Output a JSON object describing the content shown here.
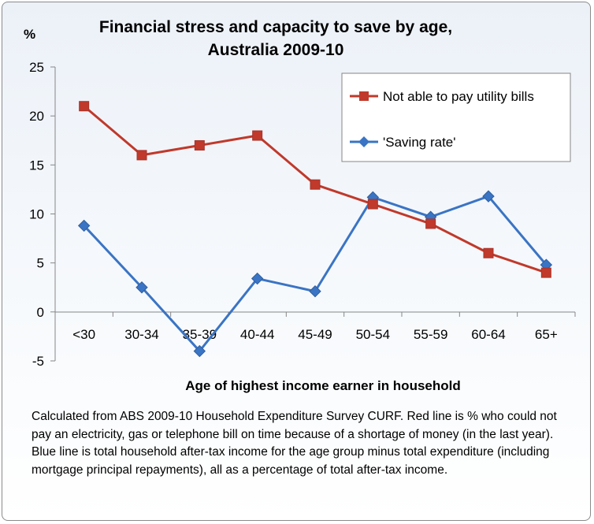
{
  "chart_data": {
    "type": "line",
    "title_line1": "Financial stress and capacity to save by age,",
    "title_line2": "Australia 2009-10",
    "ylabel": "%",
    "xlabel": "Age  of highest income earner in household",
    "categories": [
      "<30",
      "30-34",
      "35-39",
      "40-44",
      "45-49",
      "50-54",
      "55-59",
      "60-64",
      "65+"
    ],
    "ylim": [
      -5,
      25
    ],
    "yticks": [
      25,
      20,
      15,
      10,
      5,
      0,
      -5
    ],
    "grid": false,
    "legend_position": "top-right",
    "series": [
      {
        "name": "Not able to pay utility bills",
        "color": "#c0392b",
        "marker": "square",
        "values": [
          21,
          16,
          17,
          18,
          13,
          11,
          9,
          6,
          4
        ]
      },
      {
        "name": "'Saving rate'",
        "color": "#3a74c4",
        "marker": "diamond",
        "values": [
          8.8,
          2.5,
          -4.0,
          3.4,
          2.1,
          11.7,
          9.7,
          11.8,
          4.8
        ]
      }
    ]
  },
  "note": "Calculated from ABS 2009-10 Household Expenditure Survey CURF.  Red line is % who could not pay an electricity, gas or telephone bill on time because of a shortage of money (in the last year). Blue line is total household after-tax income for the age group minus total expenditure  (including mortgage principal repayments), all as a percentage of total after-tax income."
}
